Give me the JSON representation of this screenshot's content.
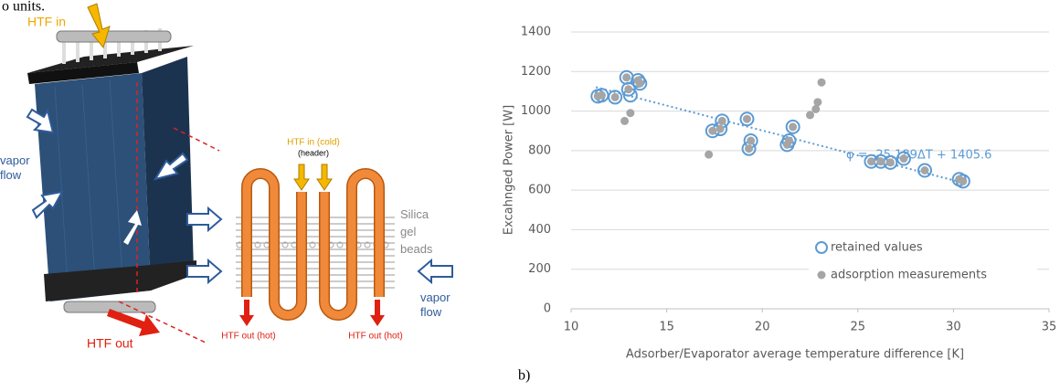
{
  "caption_fragment": "o units.",
  "panel_label": "b)",
  "diagram": {
    "htf_in": "HTF in",
    "htf_out": "HTF out",
    "vapor_flow_left": "vapor flow",
    "vapor_flow_right": "vapor flow",
    "htf_in_cold": "HTF in (cold)",
    "header": "(header)",
    "silica": "Silica gel beads",
    "htf_out_hot_left": "HTF out (hot)",
    "htf_out_hot_right": "HTF out (hot)"
  },
  "chart_data": {
    "type": "scatter",
    "x_label": "Adsorber/Evaporator average temperature difference [K]",
    "y_label": "Excahnged Power [W]",
    "xlim": [
      10,
      35
    ],
    "xticks": [
      10,
      15,
      20,
      25,
      30,
      35
    ],
    "ylim": [
      0,
      1400
    ],
    "yticks": [
      0,
      200,
      400,
      600,
      800,
      1000,
      1200,
      1400
    ],
    "grid": true,
    "legend": "lower right",
    "series": [
      {
        "name": "retained values",
        "color": "#5b9bd5",
        "marker": "open",
        "x": [
          11.4,
          11.6,
          12.3,
          12.9,
          13.0,
          13.1,
          13.5,
          13.6,
          17.4,
          17.8,
          17.9,
          19.2,
          19.3,
          19.4,
          21.3,
          21.4,
          21.6,
          25.7,
          26.2,
          26.7,
          27.4,
          28.5,
          30.3,
          30.5
        ],
        "values": [
          1075,
          1080,
          1070,
          1170,
          1110,
          1080,
          1155,
          1140,
          900,
          910,
          950,
          960,
          810,
          850,
          830,
          850,
          920,
          745,
          745,
          740,
          760,
          700,
          655,
          645
        ]
      },
      {
        "name": "adsorption measurements",
        "color": "#a5a5a5",
        "marker": "filled",
        "x": [
          11.4,
          11.6,
          12.3,
          12.8,
          12.9,
          13.1,
          13.0,
          13.5,
          13.6,
          17.2,
          17.4,
          17.8,
          17.9,
          19.2,
          19.3,
          19.4,
          21.3,
          21.4,
          21.6,
          22.5,
          22.8,
          22.9,
          23.1,
          25.7,
          26.2,
          26.7,
          27.4,
          28.5,
          30.3,
          30.5
        ],
        "values": [
          1075,
          1080,
          1070,
          950,
          1170,
          990,
          1110,
          1155,
          1140,
          780,
          900,
          910,
          950,
          960,
          810,
          850,
          830,
          850,
          920,
          980,
          1010,
          1045,
          1145,
          745,
          745,
          740,
          760,
          700,
          655,
          645
        ]
      }
    ],
    "trendline": {
      "label": "φ = -25.189ΔT + 1405.6",
      "slope": -25.189,
      "intercept": 1405.6,
      "x": [
        11.3,
        30.6
      ],
      "color": "#5b9bd5"
    }
  }
}
